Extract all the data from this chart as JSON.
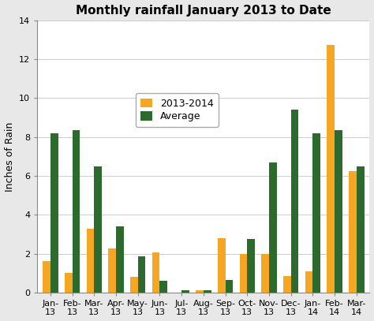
{
  "title": "Monthly rainfall January 2013 to Date",
  "ylabel": "Inches of Rain",
  "categories_line1": [
    "Jan-",
    "Feb-",
    "Mar-",
    "Apr-",
    "May-",
    "Jun-",
    "Jul-",
    "Aug-",
    "Sep-",
    "Oct-",
    "Nov-",
    "Dec-",
    "Jan-",
    "Feb-",
    "Mar-"
  ],
  "categories_line2": [
    "13",
    "13",
    "13",
    "13",
    "13",
    "13",
    "13",
    "13",
    "13",
    "13",
    "13",
    "13",
    "14",
    "14",
    "14"
  ],
  "values_2013_2014": [
    1.6,
    1.0,
    3.3,
    2.25,
    0.8,
    2.05,
    0.0,
    0.1,
    2.8,
    2.0,
    2.0,
    0.85,
    1.1,
    12.75,
    6.25
  ],
  "values_average": [
    8.2,
    8.35,
    6.5,
    3.4,
    1.85,
    0.6,
    0.1,
    0.1,
    0.65,
    2.75,
    6.7,
    9.4,
    8.2,
    8.35,
    6.5
  ],
  "color_2013_2014": "#F5A623",
  "color_average": "#2D6A2D",
  "legend_labels": [
    "2013-2014",
    "Average"
  ],
  "ylim": [
    0,
    14
  ],
  "yticks": [
    0,
    2,
    4,
    6,
    8,
    10,
    12,
    14
  ],
  "bar_width": 0.35,
  "title_fontsize": 11,
  "axis_label_fontsize": 9,
  "tick_fontsize": 8,
  "legend_fontsize": 9,
  "figure_facecolor": "#e8e8e8",
  "plot_facecolor": "#ffffff",
  "grid_color": "#cccccc",
  "spine_color": "#888888"
}
